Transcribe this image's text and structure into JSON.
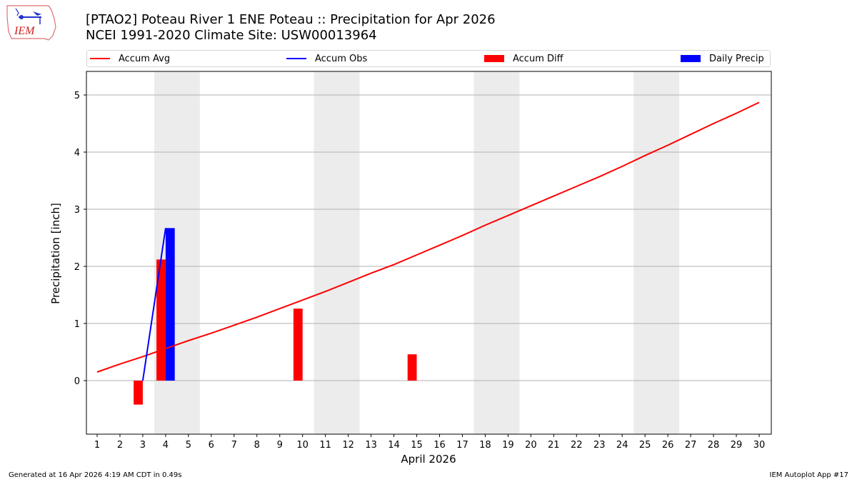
{
  "header": {
    "title_line1": "[PTAO2] Poteau River 1 ENE Poteau :: Precipitation for Apr 2026",
    "title_line2": "NCEI 1991-2020 Climate Site: USW00013964",
    "logo_text": "IEM"
  },
  "legend": {
    "items": [
      {
        "label": "Accum Avg",
        "color": "#ff0000",
        "kind": "line"
      },
      {
        "label": "Accum Obs",
        "color": "#0000ff",
        "kind": "line"
      },
      {
        "label": "Accum Diff",
        "color": "#ff0000",
        "kind": "bar"
      },
      {
        "label": "Daily Precip",
        "color": "#0000ff",
        "kind": "bar"
      }
    ]
  },
  "footer": {
    "generated": "Generated at 16 Apr 2026 4:19 AM CDT in 0.49s",
    "app": "IEM Autoplot App #17"
  },
  "chart_data": {
    "type": "bar",
    "title": "[PTAO2] Poteau River 1 ENE Poteau :: Precipitation for Apr 2026",
    "subtitle": "NCEI 1991-2020 Climate Site: USW00013964",
    "xlabel": "April 2026",
    "ylabel": "Precipitation [inch]",
    "x": [
      1,
      2,
      3,
      4,
      5,
      6,
      7,
      8,
      9,
      10,
      11,
      12,
      13,
      14,
      15,
      16,
      17,
      18,
      19,
      20,
      21,
      22,
      23,
      24,
      25,
      26,
      27,
      28,
      29,
      30
    ],
    "ylim": [
      -0.92,
      5.38
    ],
    "yticks": [
      0,
      1,
      2,
      3,
      4,
      5
    ],
    "grid": "y",
    "legend_position": "top",
    "weekend_shading": [
      [
        4,
        5
      ],
      [
        11,
        12
      ],
      [
        18,
        19
      ],
      [
        25,
        26
      ]
    ],
    "series": [
      {
        "name": "Accum Avg",
        "type": "line",
        "color": "#ff0000",
        "values": [
          0.15,
          0.29,
          0.42,
          0.56,
          0.7,
          0.83,
          0.97,
          1.11,
          1.26,
          1.41,
          1.56,
          1.72,
          1.88,
          2.03,
          2.2,
          2.37,
          2.54,
          2.72,
          2.89,
          3.06,
          3.23,
          3.4,
          3.57,
          3.75,
          3.94,
          4.12,
          4.31,
          4.5,
          4.68,
          4.87
        ]
      },
      {
        "name": "Accum Obs",
        "type": "line",
        "color": "#0000ff",
        "x": [
          3,
          4
        ],
        "values": [
          0.0,
          2.67
        ]
      },
      {
        "name": "Accum Diff",
        "type": "bar",
        "color": "#ff0000",
        "x": [
          3,
          4,
          10,
          15
        ],
        "values": [
          -0.42,
          2.12,
          1.26,
          0.46
        ]
      },
      {
        "name": "Daily Precip",
        "type": "bar",
        "color": "#0000ff",
        "x": [
          4
        ],
        "values": [
          2.67
        ]
      }
    ]
  }
}
